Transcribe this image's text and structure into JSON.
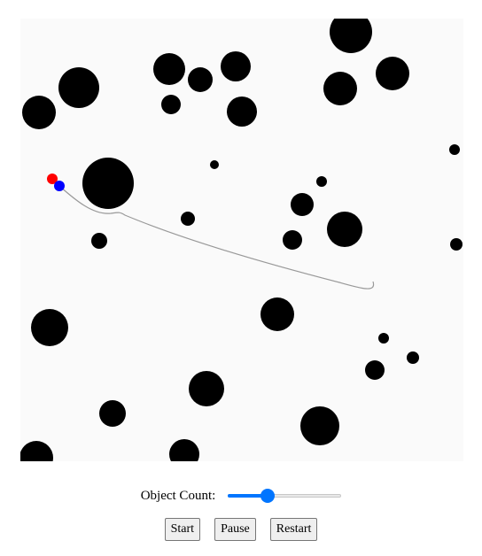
{
  "simulation": {
    "obstacle_color": "#000000",
    "background_color": "#fafafa",
    "target_color": "#ff0000",
    "agent_color": "#0000ff",
    "path_color": "#999999"
  },
  "controls": {
    "object_count_label": "Object Count:",
    "object_count_level_percent": 35,
    "start_label": "Start",
    "pause_label": "Pause",
    "restart_label": "Restart"
  }
}
